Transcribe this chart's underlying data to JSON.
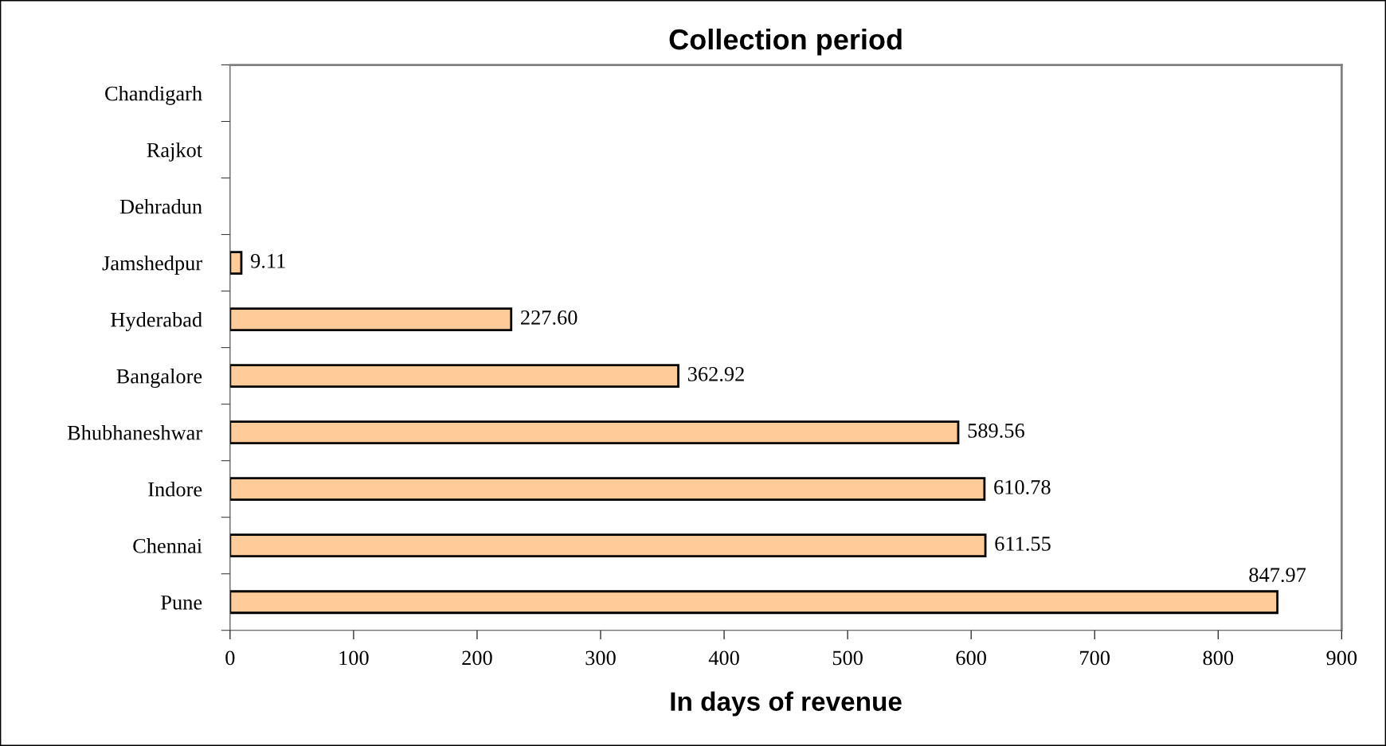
{
  "chart_data": {
    "type": "bar",
    "orientation": "horizontal",
    "title": "Collection period",
    "xlabel": "In days of revenue",
    "categories": [
      "Chandigarh",
      "Rajkot",
      "Dehradun",
      "Jamshedpur",
      "Hyderabad",
      "Bangalore",
      "Bhubhaneshwar",
      "Indore",
      "Chennai",
      "Pune"
    ],
    "values": [
      null,
      null,
      null,
      9.11,
      227.6,
      362.92,
      589.56,
      610.78,
      611.55,
      847.97
    ],
    "value_labels": [
      null,
      null,
      null,
      "9.11",
      "227.60",
      "362.92",
      "589.56",
      "610.78",
      "611.55",
      "847.97"
    ],
    "color": "#ffcc99",
    "xlim": [
      0,
      900
    ],
    "xticks": [
      0,
      100,
      200,
      300,
      400,
      500,
      600,
      700,
      800,
      900
    ],
    "grid": false,
    "legend": false
  }
}
